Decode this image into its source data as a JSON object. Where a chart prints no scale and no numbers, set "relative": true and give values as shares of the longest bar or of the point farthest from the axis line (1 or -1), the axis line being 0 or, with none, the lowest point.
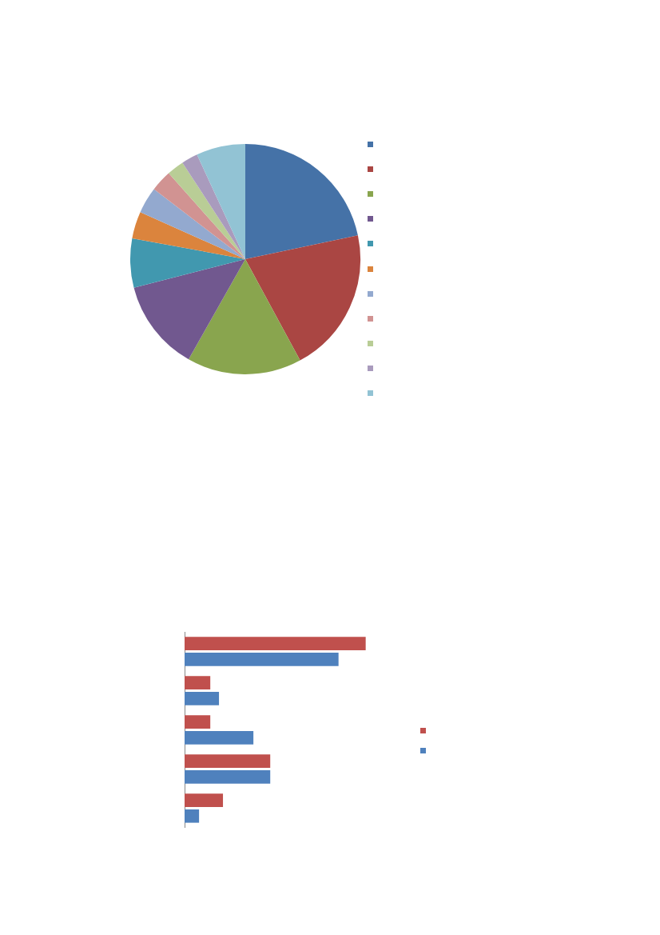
{
  "chart_data": [
    {
      "type": "pie",
      "categories": [
        null,
        null,
        null,
        null,
        null,
        null,
        null,
        null,
        null,
        null,
        null
      ],
      "values": [
        21.7,
        20.4,
        16.1,
        12.8,
        6.9,
        3.8,
        3.7,
        3.0,
        2.4,
        2.3,
        6.9
      ],
      "colors": [
        "#4572a7",
        "#aa4643",
        "#89a54e",
        "#71588f",
        "#4198af",
        "#db843d",
        "#93a9cf",
        "#d19392",
        "#b9cd96",
        "#a99bbd",
        "#92c3d4"
      ]
    },
    {
      "type": "bar",
      "orientation": "horizontal",
      "relative": true,
      "categories": [
        null,
        null,
        null,
        null,
        null
      ],
      "series": [
        {
          "color": "#c0504d",
          "values": [
            1,
            0.142,
            0.142,
            0.473,
            0.212
          ]
        },
        {
          "color": "#4f81bd",
          "values": [
            0.85,
            0.19,
            0.38,
            0.473,
            0.08
          ]
        }
      ]
    }
  ]
}
